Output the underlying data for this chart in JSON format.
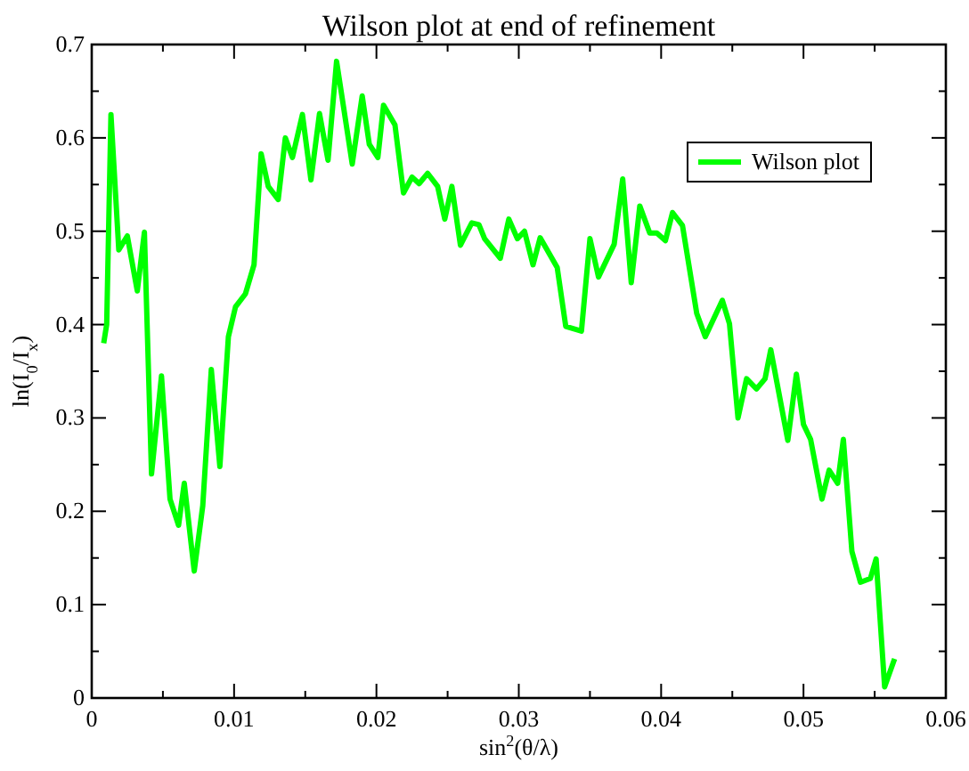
{
  "chart_data": {
    "type": "line",
    "title": "Wilson plot at end of refinement",
    "xlabel": "sin$^{2}$(θ/λ)",
    "ylabel": "ln(I$_{0}$/I$_{x}$)",
    "xlim": [
      0,
      0.06
    ],
    "ylim": [
      0,
      0.7
    ],
    "xticks": [
      0,
      {
        "value": 0.005,
        "label": null
      },
      0.01,
      {
        "value": 0.015,
        "label": null
      },
      0.02,
      {
        "value": 0.025,
        "label": null
      },
      0.03,
      {
        "value": 0.035,
        "label": null
      },
      0.04,
      {
        "value": 0.045,
        "label": null
      },
      0.05,
      {
        "value": 0.055,
        "label": null
      },
      0.06
    ],
    "yticks": [
      0,
      {
        "value": 0.05,
        "label": null
      },
      0.1,
      {
        "value": 0.15,
        "label": null
      },
      0.2,
      {
        "value": 0.25,
        "label": null
      },
      0.3,
      {
        "value": 0.35,
        "label": null
      },
      0.4,
      {
        "value": 0.45,
        "label": null
      },
      0.5,
      {
        "value": 0.55,
        "label": null
      },
      0.6,
      {
        "value": 0.65,
        "label": null
      },
      0.7
    ],
    "legend": "top right",
    "grid": false,
    "marker": "none",
    "line_style": "solid",
    "series": [
      {
        "name": "Wilson plot",
        "color": "#00ff00",
        "x": [
          0.00084,
          0.00105,
          0.00135,
          0.00156,
          0.0019,
          0.0025,
          0.0032,
          0.0037,
          0.0042,
          0.0049,
          0.0055,
          0.0061,
          0.0065,
          0.0072,
          0.0078,
          0.0084,
          0.009,
          0.0096,
          0.0101,
          0.0108,
          0.0114,
          0.0119,
          0.0124,
          0.0131,
          0.0136,
          0.0141,
          0.0148,
          0.0154,
          0.016,
          0.0166,
          0.0172,
          0.0183,
          0.019,
          0.0195,
          0.0201,
          0.0205,
          0.0213,
          0.0219,
          0.0225,
          0.023,
          0.0236,
          0.0243,
          0.0248,
          0.0253,
          0.0259,
          0.0267,
          0.0272,
          0.0276,
          0.0287,
          0.0293,
          0.0299,
          0.0304,
          0.031,
          0.0315,
          0.0327,
          0.0333,
          0.0344,
          0.035,
          0.0356,
          0.0367,
          0.0373,
          0.0379,
          0.0385,
          0.0392,
          0.0397,
          0.0403,
          0.0408,
          0.0415,
          0.0425,
          0.0431,
          0.0443,
          0.0448,
          0.0454,
          0.046,
          0.0467,
          0.0473,
          0.0477,
          0.0489,
          0.0495,
          0.05,
          0.0505,
          0.0513,
          0.0518,
          0.0524,
          0.0528,
          0.0534,
          0.054,
          0.0547,
          0.0551,
          0.0557,
          0.0564
        ],
        "values": [
          0.38,
          0.4,
          0.625,
          0.57,
          0.48,
          0.495,
          0.436,
          0.499,
          0.24,
          0.345,
          0.213,
          0.185,
          0.23,
          0.136,
          0.206,
          0.352,
          0.248,
          0.387,
          0.419,
          0.433,
          0.464,
          0.583,
          0.548,
          0.534,
          0.6,
          0.579,
          0.625,
          0.555,
          0.626,
          0.576,
          0.682,
          0.572,
          0.645,
          0.593,
          0.579,
          0.635,
          0.614,
          0.541,
          0.558,
          0.551,
          0.562,
          0.548,
          0.513,
          0.548,
          0.485,
          0.509,
          0.507,
          0.492,
          0.471,
          0.513,
          0.492,
          0.5,
          0.464,
          0.493,
          0.461,
          0.398,
          0.393,
          0.492,
          0.451,
          0.486,
          0.556,
          0.445,
          0.527,
          0.498,
          0.498,
          0.49,
          0.52,
          0.506,
          0.412,
          0.387,
          0.426,
          0.401,
          0.3,
          0.342,
          0.331,
          0.342,
          0.373,
          0.276,
          0.347,
          0.293,
          0.277,
          0.213,
          0.244,
          0.23,
          0.277,
          0.157,
          0.124,
          0.128,
          0.149,
          0.012,
          0.042
        ]
      }
    ]
  }
}
